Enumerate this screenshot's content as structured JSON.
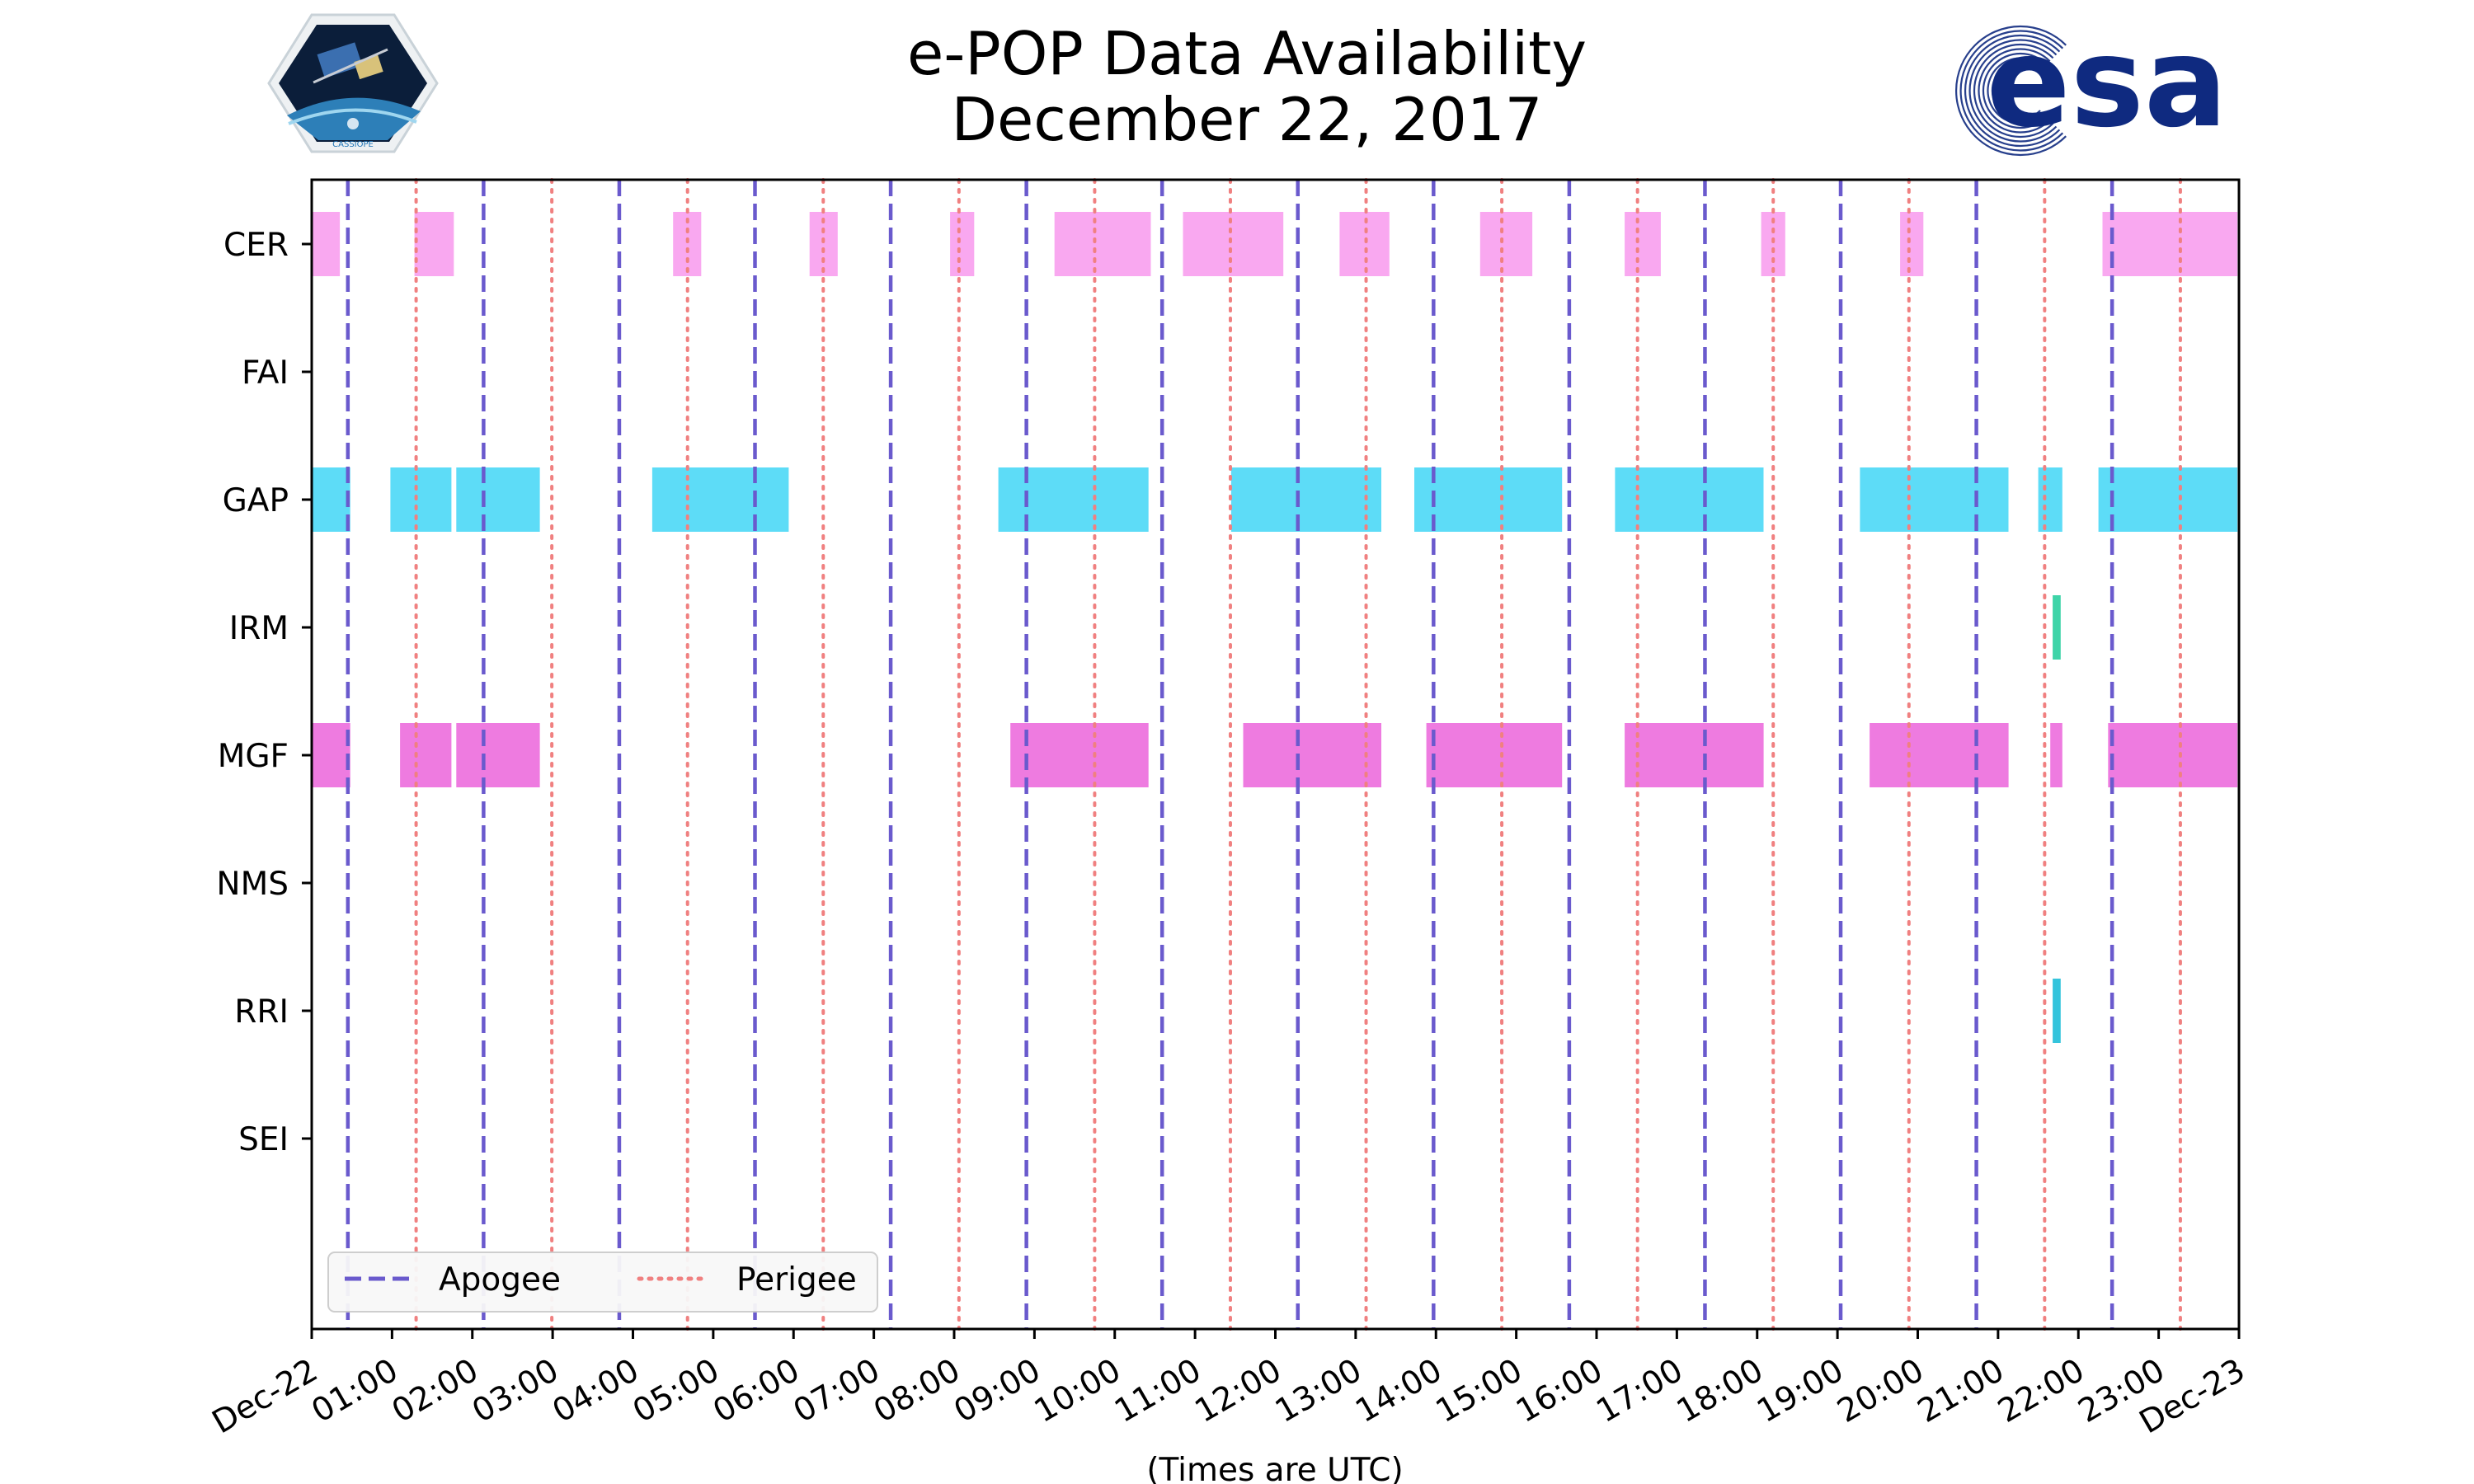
{
  "colors": {
    "apogee": "#6a5acd",
    "perigee": "#f08080",
    "esa_blue": "#0f2a80",
    "CER": "#f9a8f0",
    "GAP": "#5ddcf7",
    "IRM": "#3ed4a8",
    "MGF": "#ee7be0",
    "RRI": "#34c4dc"
  },
  "logos": {
    "cassiope_label": "CASSIOPE",
    "esa_label": "esa"
  },
  "chart_data": {
    "type": "timeline",
    "title": "e-POP Data Availability",
    "subtitle": "December 22, 2017",
    "xlabel": "(Times are UTC)",
    "xlim_hours": [
      0,
      24
    ],
    "xtick_labels": [
      "Dec-22",
      "01:00",
      "02:00",
      "03:00",
      "04:00",
      "05:00",
      "06:00",
      "07:00",
      "08:00",
      "09:00",
      "10:00",
      "11:00",
      "12:00",
      "13:00",
      "14:00",
      "15:00",
      "16:00",
      "17:00",
      "18:00",
      "19:00",
      "20:00",
      "21:00",
      "22:00",
      "23:00",
      "Dec-23"
    ],
    "instruments": [
      "CER",
      "FAI",
      "GAP",
      "IRM",
      "MGF",
      "NMS",
      "RRI",
      "SEI"
    ],
    "apogee_hours": [
      0.45,
      2.14,
      3.83,
      5.52,
      7.21,
      8.9,
      10.59,
      12.28,
      13.97,
      15.66,
      17.35,
      19.04,
      20.73,
      22.42
    ],
    "perigee_hours": [
      1.3,
      2.99,
      4.68,
      6.37,
      8.06,
      9.75,
      11.44,
      13.13,
      14.82,
      16.51,
      18.2,
      19.89,
      21.58,
      23.27
    ],
    "intervals": {
      "CER": [
        [
          0.0,
          0.35
        ],
        [
          1.28,
          1.77
        ],
        [
          4.5,
          4.85
        ],
        [
          6.2,
          6.55
        ],
        [
          7.95,
          8.25
        ],
        [
          9.25,
          10.45
        ],
        [
          10.85,
          12.1
        ],
        [
          12.8,
          13.42
        ],
        [
          14.55,
          15.2
        ],
        [
          16.35,
          16.8
        ],
        [
          18.05,
          18.35
        ],
        [
          19.78,
          20.07
        ],
        [
          22.3,
          23.98
        ]
      ],
      "FAI": [],
      "GAP": [
        [
          0.0,
          0.48
        ],
        [
          0.98,
          1.74
        ],
        [
          1.8,
          2.84
        ],
        [
          4.24,
          5.94
        ],
        [
          8.55,
          10.42
        ],
        [
          11.45,
          13.32
        ],
        [
          13.73,
          15.57
        ],
        [
          16.23,
          18.08
        ],
        [
          19.28,
          21.13
        ],
        [
          21.5,
          21.8
        ],
        [
          22.25,
          23.98
        ]
      ],
      "IRM": [
        [
          21.68,
          21.78
        ]
      ],
      "MGF": [
        [
          0.0,
          0.48
        ],
        [
          1.1,
          1.74
        ],
        [
          1.8,
          2.84
        ],
        [
          8.7,
          10.42
        ],
        [
          11.6,
          13.32
        ],
        [
          13.88,
          15.57
        ],
        [
          16.35,
          18.08
        ],
        [
          19.4,
          21.13
        ],
        [
          21.65,
          21.8
        ],
        [
          22.37,
          23.98
        ]
      ],
      "NMS": [],
      "RRI": [
        [
          21.68,
          21.78
        ]
      ],
      "SEI": []
    },
    "legend": [
      {
        "label": "Apogee",
        "style": "dashed"
      },
      {
        "label": "Perigee",
        "style": "dotted"
      }
    ],
    "legend_position": "lower-left"
  }
}
